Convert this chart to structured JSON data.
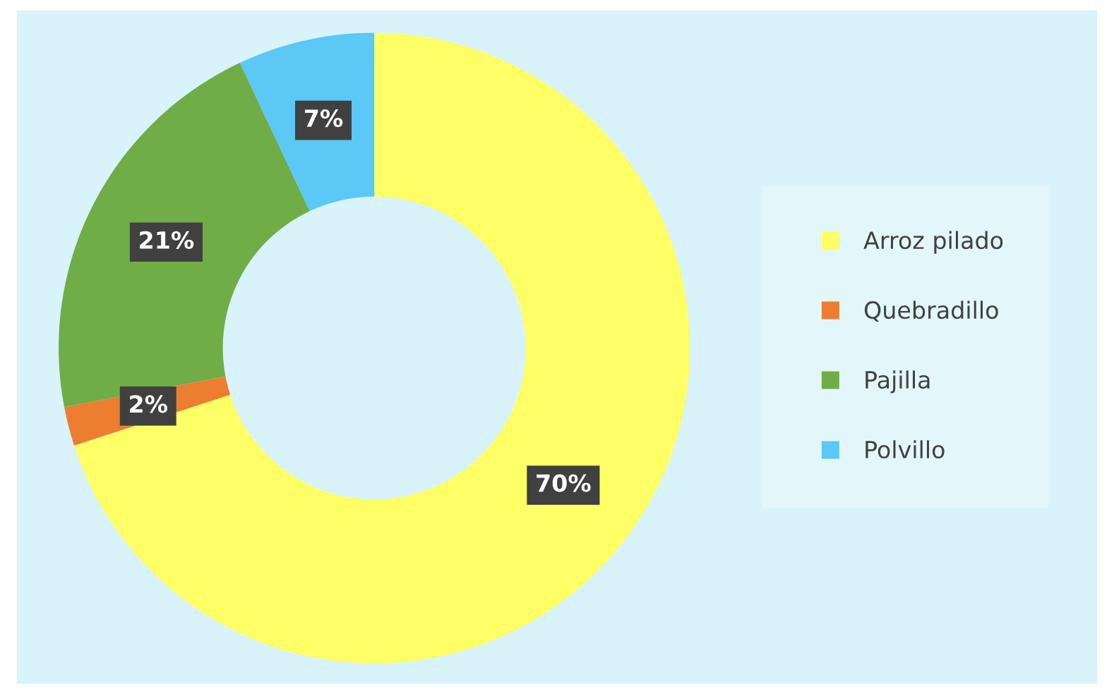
{
  "chart_data": {
    "type": "donut",
    "categories": [
      "Arroz pilado",
      "Quebradillo",
      "Pajilla",
      "Polvillo"
    ],
    "values": [
      70,
      2,
      21,
      7
    ],
    "colors": [
      "#ffff66",
      "#ed7d31",
      "#70ad47",
      "#5bc8f5"
    ],
    "value_labels": [
      "70%",
      "2%",
      "21%",
      "7%"
    ],
    "legend": "right"
  }
}
